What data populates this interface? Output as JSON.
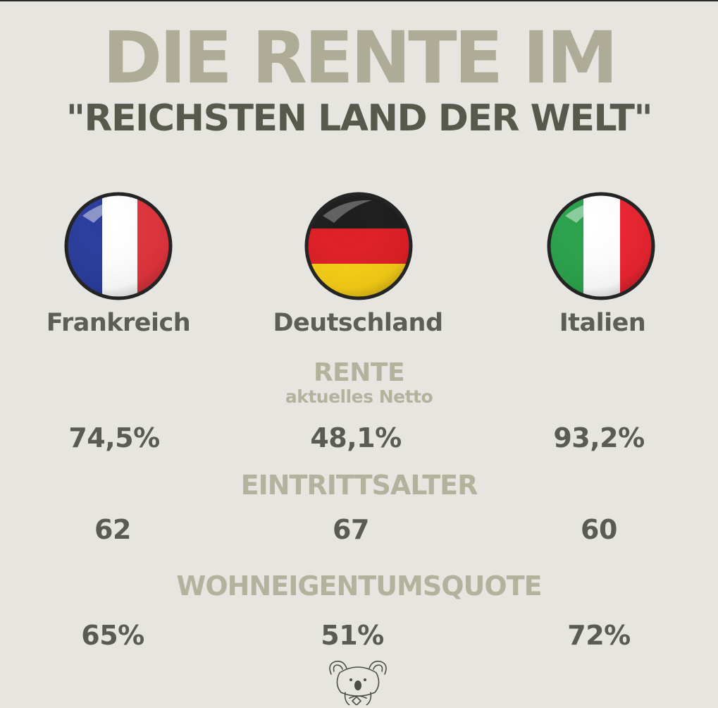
{
  "title": {
    "line1": "DIE RENTE IM",
    "line2": "\"REICHSTEN LAND DER WELT\""
  },
  "countries": [
    {
      "name": "Frankreich",
      "flag": "france-flag-icon",
      "colors": [
        "#2a3d9c",
        "#ffffff",
        "#e1343d"
      ]
    },
    {
      "name": "Deutschland",
      "flag": "germany-flag-icon",
      "colors": [
        "#1d1d1d",
        "#df1f26",
        "#f7cf16"
      ]
    },
    {
      "name": "Italien",
      "flag": "italy-flag-icon",
      "colors": [
        "#2ba24c",
        "#ffffff",
        "#ea2530"
      ]
    }
  ],
  "sections": {
    "rente": {
      "label": "RENTE",
      "sublabel": "aktuelles Netto",
      "values": [
        "74,5%",
        "48,1%",
        "93,2%"
      ]
    },
    "eintrittsalter": {
      "label": "EINTRITTSALTER",
      "values": [
        "62",
        "67",
        "60"
      ]
    },
    "wohneigentumsquote": {
      "label": "WOHNEIGENTUMSQUOTE",
      "values": [
        "65%",
        "51%",
        "72%"
      ]
    }
  },
  "logo": "koala-logo-icon"
}
